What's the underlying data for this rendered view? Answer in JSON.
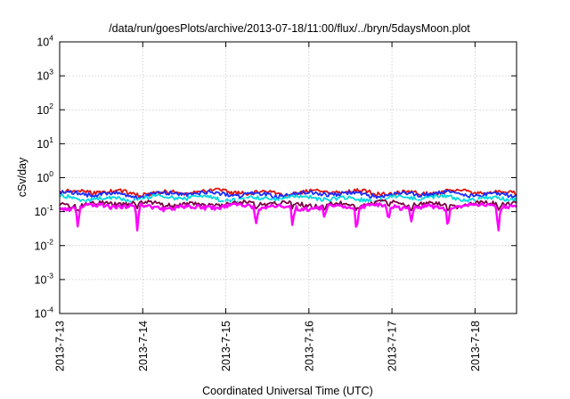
{
  "chart_data": {
    "type": "line",
    "title": "/data/run/goesPlots/archive/2013-07-18/11:00/flux/../bryn/5daysMoon.plot",
    "xlabel": "Coordinated Universal Time (UTC)",
    "ylabel": "cSv/day",
    "yscale": "log",
    "ylim": [
      0.0001,
      10000
    ],
    "xlim": [
      "2013-07-13T00:00",
      "2013-07-18T12:00"
    ],
    "grid": true,
    "y_ticks": [
      {
        "base": "10",
        "exp": "4"
      },
      {
        "base": "10",
        "exp": "3"
      },
      {
        "base": "10",
        "exp": "2"
      },
      {
        "base": "10",
        "exp": "1"
      },
      {
        "base": "10",
        "exp": "0"
      },
      {
        "base": "10",
        "exp": "-1"
      },
      {
        "base": "10",
        "exp": "-2"
      },
      {
        "base": "10",
        "exp": "-3"
      },
      {
        "base": "10",
        "exp": "-4"
      }
    ],
    "x_ticks": [
      "2013-7-13",
      "2013-7-14",
      "2013-7-15",
      "2013-7-16",
      "2013-7-17",
      "2013-7-18"
    ],
    "series": [
      {
        "color": "#e01010",
        "level": 0.37
      },
      {
        "color": "#1a2cff",
        "level": 0.33
      },
      {
        "color": "#00d8e0",
        "level": 0.25
      },
      {
        "color": "#ffffff",
        "level": 0.2
      },
      {
        "color": "#7a0040",
        "level": 0.17
      },
      {
        "color": "#ff00ff",
        "level": 0.14
      }
    ]
  }
}
